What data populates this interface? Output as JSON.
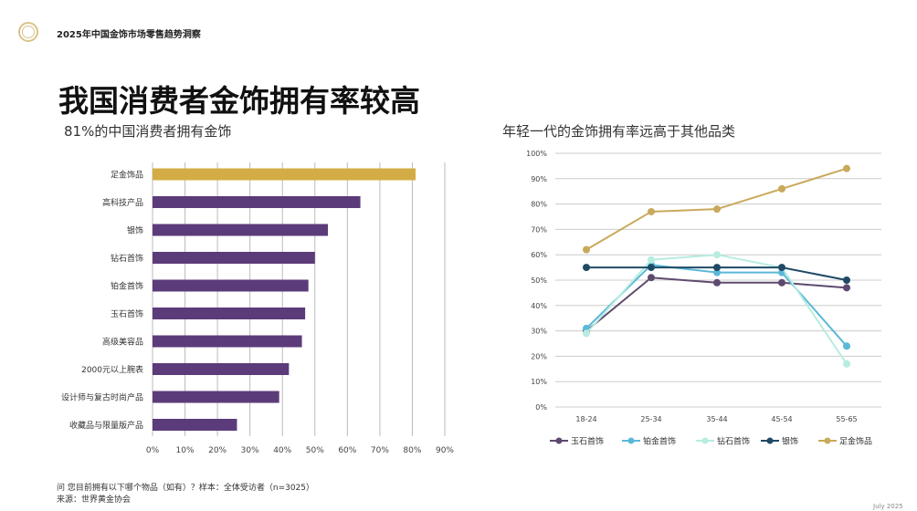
{
  "header": {
    "report_title": "2025年中国金饰市场零售趋势洞察",
    "page_title": "我国消费者金饰拥有率较高"
  },
  "footer": {
    "question": "问 您目前拥有以下哪个物品（如有）？样本：全体受访者（n=3025）",
    "source": "来源：世界黄金协会",
    "date": "July 2025"
  },
  "chart_data": [
    {
      "type": "bar",
      "orientation": "horizontal",
      "title": "81%的中国消费者拥有金饰",
      "categories": [
        "足金饰品",
        "高科技产品",
        "银饰",
        "钻石首饰",
        "铂金首饰",
        "玉石首饰",
        "高级美容品",
        "2000元以上腕表",
        "设计师与复古时尚产品",
        "收藏品与限量版产品"
      ],
      "values": [
        81,
        64,
        54,
        50,
        48,
        47,
        46,
        42,
        39,
        26
      ],
      "highlight_color": "#d4ac45",
      "bar_color": "#5c3b7a",
      "xlim": [
        0,
        90
      ],
      "xticks": [
        "0%",
        "10%",
        "20%",
        "30%",
        "40%",
        "50%",
        "60%",
        "70%",
        "80%",
        "90%"
      ],
      "grid": true
    },
    {
      "type": "line",
      "title": "年轻一代的金饰拥有率远高于其他品类",
      "categories": [
        "18-24",
        "25-34",
        "35-44",
        "45-54",
        "55-65"
      ],
      "ylim": [
        0,
        100
      ],
      "yticks": [
        "0%",
        "10%",
        "20%",
        "30%",
        "40%",
        "50%",
        "60%",
        "70%",
        "80%",
        "90%",
        "100%"
      ],
      "grid": true,
      "legend": "bottom",
      "series": [
        {
          "name": "玉石首饰",
          "color": "#5e4a6e",
          "values": [
            30,
            51,
            49,
            49,
            47
          ]
        },
        {
          "name": "铂金首饰",
          "color": "#5bb8d8",
          "values": [
            31,
            56,
            53,
            53,
            24
          ]
        },
        {
          "name": "钻石首饰",
          "color": "#b8ece0",
          "values": [
            29,
            58,
            60,
            55,
            17
          ]
        },
        {
          "name": "银饰",
          "color": "#1f4a66",
          "values": [
            55,
            55,
            55,
            55,
            50
          ]
        },
        {
          "name": "足金饰品",
          "color": "#c9a95a",
          "values": [
            62,
            77,
            78,
            86,
            94
          ]
        }
      ]
    }
  ]
}
